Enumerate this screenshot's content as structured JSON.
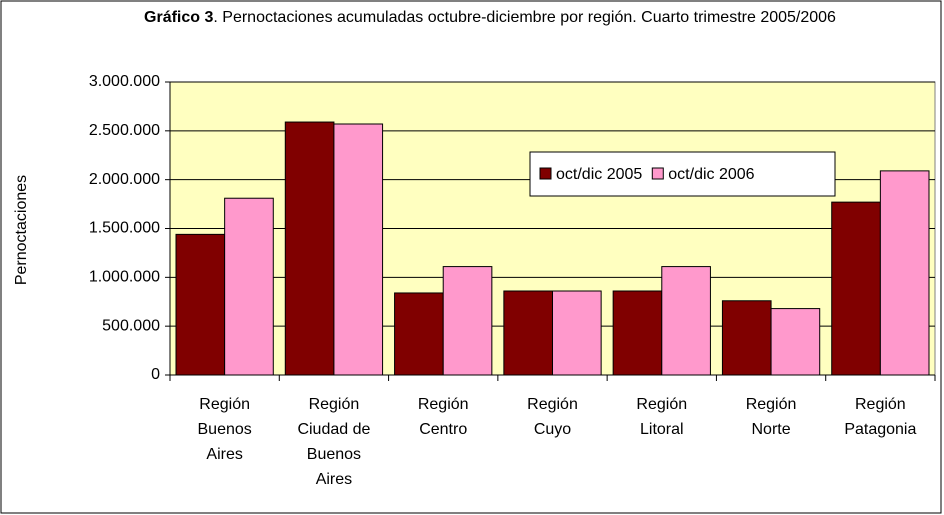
{
  "chart_data": {
    "type": "bar",
    "title_prefix": "Gráfico 3",
    "title": ". Pernoctaciones acumuladas octubre-diciembre por región. Cuarto trimestre 2005/2006",
    "y_label": "Pernoctaciones",
    "categories": [
      "Región Buenos Aires",
      "Región Ciudad de Buenos Aires",
      "Región Centro",
      "Región Cuyo",
      "Región Litoral",
      "Región Norte",
      "Región Patagonia"
    ],
    "series": [
      {
        "name": "oct/dic 2005",
        "color": "#800000",
        "values": [
          1440000,
          2590000,
          840000,
          860000,
          860000,
          760000,
          1770000
        ]
      },
      {
        "name": "oct/dic 2006",
        "color": "#ff99cc",
        "values": [
          1810000,
          2570000,
          1110000,
          860000,
          1110000,
          680000,
          2090000
        ]
      }
    ],
    "ylim": [
      0,
      3000000
    ],
    "yticks": [
      0,
      {
        "value": 500000,
        "label": "500.000"
      },
      {
        "value": 1000000,
        "label": "1.000.000"
      },
      {
        "value": 1500000,
        "label": "1.500.000"
      },
      {
        "value": 2000000,
        "label": "2.000.000"
      },
      {
        "value": 2500000,
        "label": "2.500.000"
      },
      {
        "value": 3000000,
        "label": "3.000.000"
      }
    ],
    "grid": true,
    "plot_background": "#ffffc0",
    "legend": "upper-center"
  }
}
